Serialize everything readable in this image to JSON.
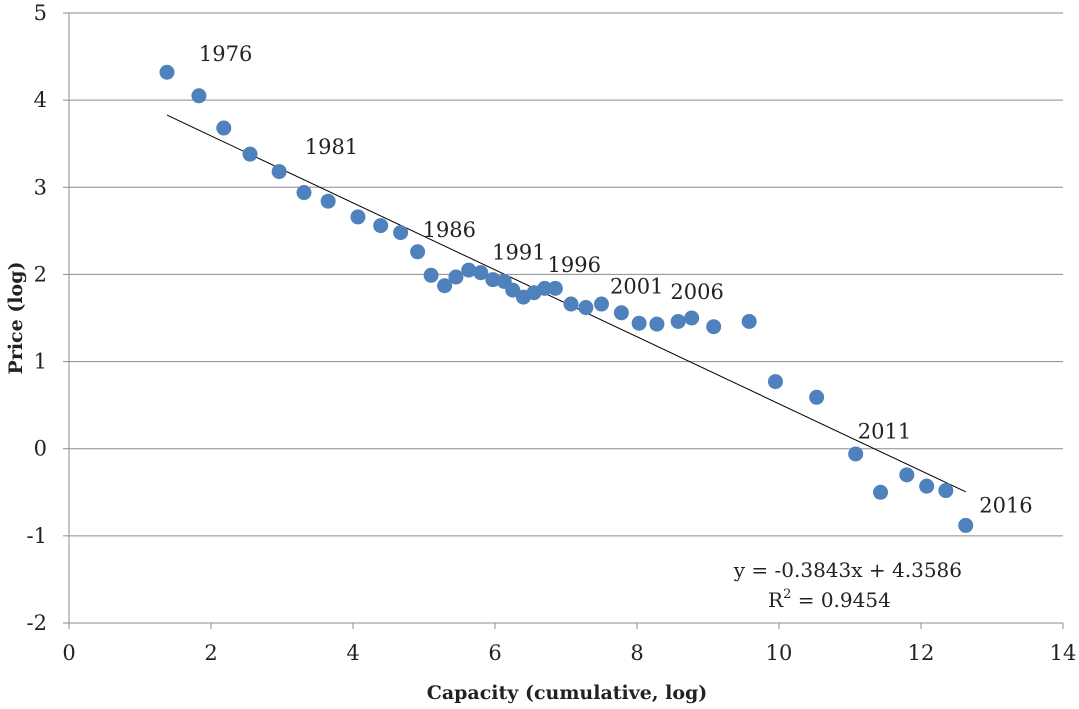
{
  "chart_data": {
    "type": "scatter",
    "title": "",
    "xlabel": "Capacity (cumulative, log)",
    "ylabel": "Price (log)",
    "xlim": [
      0,
      14
    ],
    "ylim": [
      -2,
      5
    ],
    "xticks": [
      0,
      2,
      4,
      6,
      8,
      10,
      12,
      14
    ],
    "yticks": [
      -2,
      -1,
      0,
      1,
      2,
      3,
      4,
      5
    ],
    "grid": "horizontal",
    "marker_color": "#4f81bd",
    "series": [
      {
        "x": [
          1.38,
          1.83,
          2.18,
          2.55,
          2.96,
          3.31,
          3.65,
          4.07,
          4.39,
          4.67,
          4.91,
          5.1,
          5.29,
          5.45,
          5.63,
          5.8,
          5.97,
          6.13,
          6.25,
          6.4,
          6.55,
          6.7,
          6.85,
          7.07,
          7.28,
          7.5,
          7.78,
          8.03,
          8.28,
          8.58,
          8.77,
          9.08,
          9.58,
          9.95,
          10.53,
          11.08,
          11.43,
          11.8,
          12.08,
          12.35,
          12.63
        ],
        "y": [
          4.32,
          4.05,
          3.68,
          3.38,
          3.18,
          2.94,
          2.84,
          2.66,
          2.56,
          2.48,
          2.26,
          1.99,
          1.87,
          1.97,
          2.05,
          2.02,
          1.94,
          1.92,
          1.82,
          1.74,
          1.79,
          1.84,
          1.84,
          1.66,
          1.62,
          1.66,
          1.56,
          1.44,
          1.43,
          1.46,
          1.5,
          1.4,
          1.46,
          0.77,
          0.59,
          -0.06,
          -0.5,
          -0.3,
          -0.43,
          -0.48,
          -0.88
        ]
      }
    ],
    "trendline": {
      "slope": -0.3843,
      "intercept": 4.3586,
      "x_range": [
        1.38,
        12.63
      ],
      "equation_label": "y = -0.3843x + 4.3586",
      "r2_prefix": "R",
      "r2_sup": "2",
      "r2_value": " = 0.9454"
    },
    "annotations": [
      {
        "text": "1976",
        "x": 1.83,
        "y": 4.45
      },
      {
        "text": "1981",
        "x": 3.32,
        "y": 3.38
      },
      {
        "text": "1986",
        "x": 4.98,
        "y": 2.43
      },
      {
        "text": "1991",
        "x": 5.96,
        "y": 2.17
      },
      {
        "text": "1996",
        "x": 6.74,
        "y": 2.03
      },
      {
        "text": "2001",
        "x": 7.62,
        "y": 1.78
      },
      {
        "text": "2006",
        "x": 8.47,
        "y": 1.72
      },
      {
        "text": "2011",
        "x": 11.11,
        "y": 0.12
      },
      {
        "text": "2016",
        "x": 12.82,
        "y": -0.73
      }
    ]
  }
}
